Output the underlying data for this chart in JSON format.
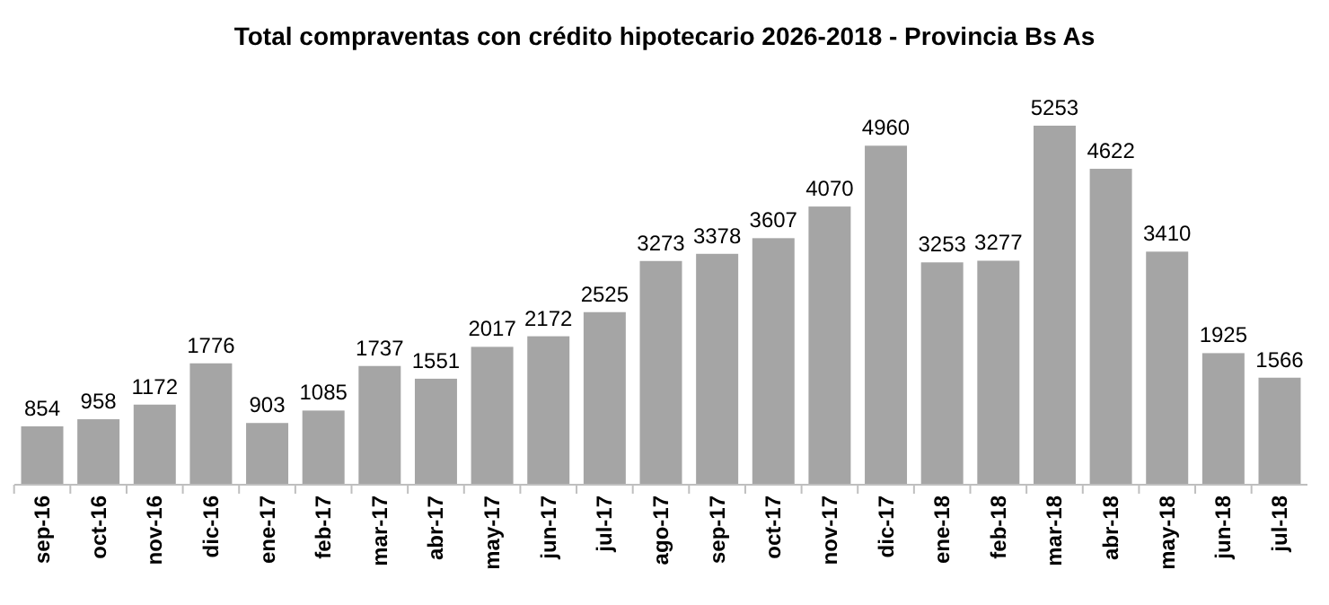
{
  "chart_data": {
    "type": "bar",
    "title": "Total compraventas con crédito hipotecario 2026-2018 - Provincia Bs As",
    "categories": [
      "sep-16",
      "oct-16",
      "nov-16",
      "dic-16",
      "ene-17",
      "feb-17",
      "mar-17",
      "abr-17",
      "may-17",
      "jun-17",
      "jul-17",
      "ago-17",
      "sep-17",
      "oct-17",
      "nov-17",
      "dic-17",
      "ene-18",
      "feb-18",
      "mar-18",
      "abr-18",
      "may-18",
      "jun-18",
      "jul-18"
    ],
    "values": [
      854,
      958,
      1172,
      1776,
      903,
      1085,
      1737,
      1551,
      2017,
      2172,
      2525,
      3273,
      3378,
      3607,
      4070,
      4960,
      3253,
      3277,
      5253,
      4622,
      3410,
      1925,
      1566
    ],
    "color": "#a5a5a5",
    "data_labels": true
  }
}
